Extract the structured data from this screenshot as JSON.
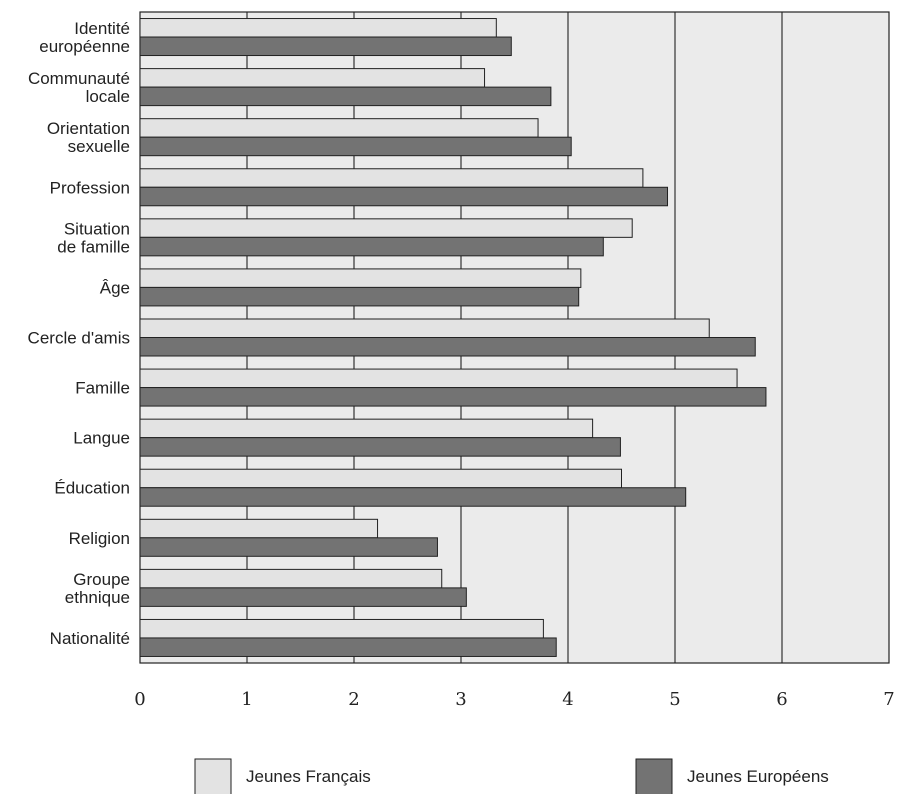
{
  "chart_data": {
    "type": "bar",
    "orientation": "horizontal",
    "categories": [
      "Identité\neuropéenne",
      "Communauté\nlocale",
      "Orientation\nsexuelle",
      "Profession",
      "Situation\nde famille",
      "Âge",
      "Cercle d'amis",
      "Famille",
      "Langue",
      "Éducation",
      "Religion",
      "Groupe\nethnique",
      "Nationalité"
    ],
    "series": [
      {
        "name": "Jeunes Français",
        "color": "#e3e3e3",
        "values": [
          3.33,
          3.22,
          3.72,
          4.7,
          4.6,
          4.12,
          5.32,
          5.58,
          4.23,
          4.5,
          2.22,
          2.82,
          3.77
        ]
      },
      {
        "name": "Jeunes Européens",
        "color": "#737373",
        "values": [
          3.47,
          3.84,
          4.03,
          4.93,
          4.33,
          4.1,
          5.75,
          5.85,
          4.49,
          5.1,
          2.78,
          3.05,
          3.89
        ]
      }
    ],
    "xlim": [
      0,
      7
    ],
    "xticks": [
      "0",
      "1",
      "2",
      "3",
      "4",
      "5",
      "6",
      "7"
    ],
    "grid": "vertical",
    "plot_background": "#ebebeb",
    "legend_position": "bottom",
    "title": "",
    "xlabel": "",
    "ylabel": ""
  }
}
